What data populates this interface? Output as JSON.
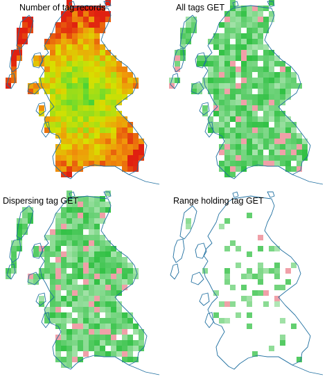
{
  "figure": {
    "panels": [
      {
        "title": "Number of tag records",
        "scheme": "heat"
      },
      {
        "title": "All tags GET",
        "scheme": "green"
      },
      {
        "title": "Dispersing tag GET",
        "scheme": "green"
      },
      {
        "title": "Range holding tag GET",
        "scheme": "sparse"
      }
    ]
  },
  "colors": {
    "coastline": "#1f6fa0",
    "background": "#ffffff",
    "heat_low": "#2ecc40",
    "heat_mid": "#d8e000",
    "heat_high": "#e02010",
    "get_green": "#36c244",
    "get_pink": "#f0a0a8"
  }
}
